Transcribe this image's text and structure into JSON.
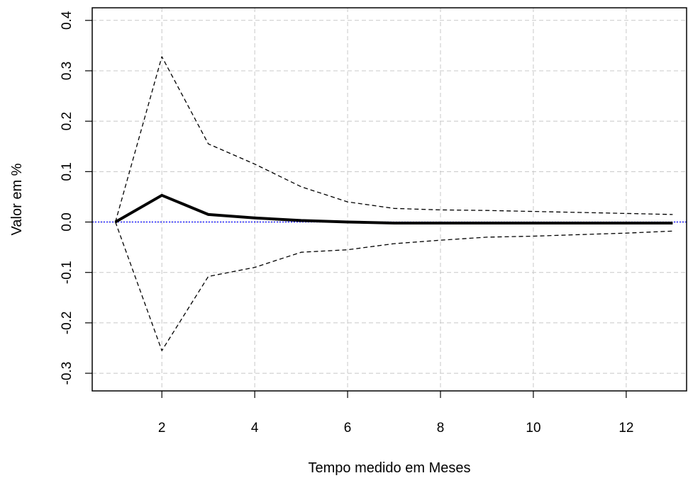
{
  "chart_data": {
    "type": "line",
    "xlabel": "Tempo medido em Meses",
    "ylabel": "Valor em %",
    "xlim": [
      0.5,
      13.3
    ],
    "ylim": [
      -0.335,
      0.425
    ],
    "x_ticks": [
      2,
      4,
      6,
      8,
      10,
      12
    ],
    "y_ticks": [
      -0.3,
      -0.2,
      -0.1,
      0.0,
      0.1,
      0.2,
      0.3,
      0.4
    ],
    "y_tick_labels": [
      "-0.3",
      "-0.2",
      "-0.1",
      "0.0",
      "0.1",
      "0.2",
      "0.3",
      "0.4"
    ],
    "grid": true,
    "zero_line": {
      "y": 0.0,
      "color": "#0000ff",
      "style": "dotted"
    },
    "series": [
      {
        "role": "estimate",
        "style": "solid-thick",
        "color": "#000000",
        "x": [
          1,
          2,
          3,
          4,
          5,
          6,
          7,
          8,
          9,
          10,
          11,
          12,
          13
        ],
        "values": [
          0.0,
          0.053,
          0.015,
          0.008,
          0.003,
          0.0,
          -0.002,
          -0.002,
          -0.002,
          -0.002,
          -0.002,
          -0.002,
          -0.002
        ]
      },
      {
        "role": "upper-bound",
        "style": "dashed",
        "color": "#000000",
        "x": [
          1,
          2,
          3,
          4,
          5,
          6,
          7,
          8,
          9,
          10,
          11,
          12,
          13
        ],
        "values": [
          0.0,
          0.328,
          0.155,
          0.115,
          0.07,
          0.04,
          0.027,
          0.024,
          0.023,
          0.021,
          0.019,
          0.017,
          0.015
        ]
      },
      {
        "role": "lower-bound",
        "style": "dashed",
        "color": "#000000",
        "x": [
          1,
          2,
          3,
          4,
          5,
          6,
          7,
          8,
          9,
          10,
          11,
          12,
          13
        ],
        "values": [
          0.0,
          -0.255,
          -0.108,
          -0.09,
          -0.06,
          -0.055,
          -0.043,
          -0.036,
          -0.03,
          -0.028,
          -0.025,
          -0.022,
          -0.018
        ]
      }
    ]
  }
}
